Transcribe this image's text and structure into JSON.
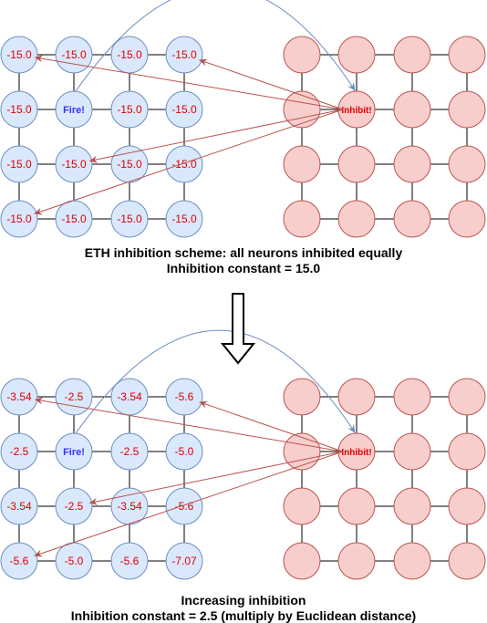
{
  "colors": {
    "blue_fill": "#dae8fc",
    "blue_stroke": "#6c8ebf",
    "red_fill": "#f8cecc",
    "red_stroke": "#b85450",
    "value_text": "#e00000",
    "fire_text": "#3333ff",
    "inhibit_text": "#e00000",
    "curve": "#6c8ebf",
    "arrow": "#b85450",
    "grid_line": "#000000"
  },
  "top_panel": {
    "fire_label": "Fire!",
    "inhibit_label": "Inhibit!",
    "values": [
      [
        "-15.0",
        "-15.0",
        "-15.0",
        "-15.0"
      ],
      [
        "-15.0",
        "Fire!",
        "-15.0",
        "-15.0"
      ],
      [
        "-15.0",
        "-15.0",
        "-15.0",
        "-15.0"
      ],
      [
        "-15.0",
        "-15.0",
        "-15.0",
        "-15.0"
      ]
    ],
    "caption_line1": "ETH inhibition scheme: all neurons inhibited equally",
    "caption_line2": "Inhibition constant = 15.0"
  },
  "bottom_panel": {
    "fire_label": "Fire!",
    "inhibit_label": "Inhibit!",
    "values": [
      [
        "-3.54",
        "-2.5",
        "-3.54",
        "-5.6"
      ],
      [
        "-2.5",
        "Fire!",
        "-2.5",
        "-5.0"
      ],
      [
        "-3.54",
        "-2.5",
        "-3.54",
        "-5.6"
      ],
      [
        "-5.6",
        "-5.0",
        "-5.6",
        "-7.07"
      ]
    ],
    "caption_line1": "Increasing inhibition",
    "caption_line2": "Inhibition constant = 2.5 (multiply by Euclidean distance)"
  }
}
